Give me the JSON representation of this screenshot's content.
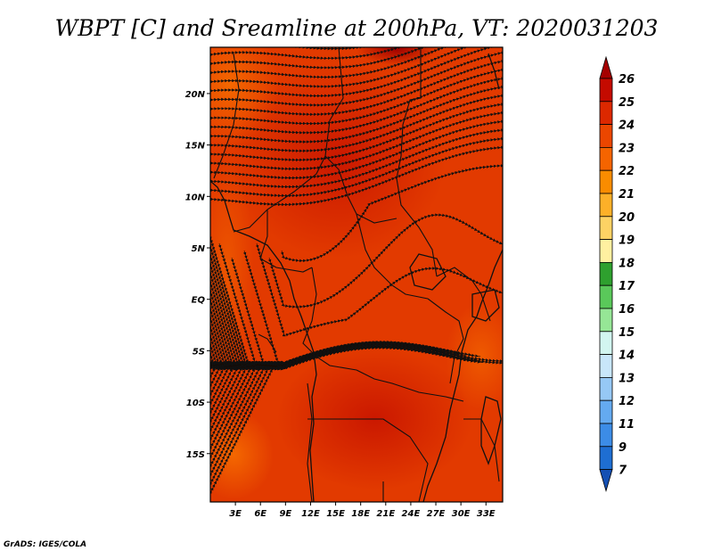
{
  "title": "WBPT [C] and Sreamline at 200hPa, VT: 2020031203",
  "credit": "GrADS: IGES/COLA",
  "map": {
    "lon_range": [
      0,
      35
    ],
    "lat_range": [
      -19.7,
      24.5
    ],
    "lon_ticks": [
      "3E",
      "6E",
      "9E",
      "12E",
      "15E",
      "18E",
      "21E",
      "24E",
      "27E",
      "30E",
      "33E"
    ],
    "lat_ticks": [
      "20N",
      "15N",
      "10N",
      "5N",
      "EQ",
      "5S",
      "10S",
      "15S"
    ],
    "field": "wet-bulb potential temperature shaded, streamlines overlaid"
  },
  "colorbar": {
    "labels": [
      "26",
      "25",
      "24",
      "23",
      "22",
      "21",
      "20",
      "19",
      "18",
      "17",
      "16",
      "15",
      "14",
      "13",
      "12",
      "11",
      "9",
      "7"
    ],
    "colors": [
      "#a50000",
      "#c40a00",
      "#dc2800",
      "#eb4600",
      "#f56400",
      "#fa8c00",
      "#fdb028",
      "#fdd264",
      "#fff0a0",
      "#2ea02e",
      "#5ac85a",
      "#96e696",
      "#d2f5f0",
      "#c8e6fa",
      "#96c8f5",
      "#64aaf0",
      "#3c8ce6",
      "#1e6ed2",
      "#1450b4"
    ]
  }
}
